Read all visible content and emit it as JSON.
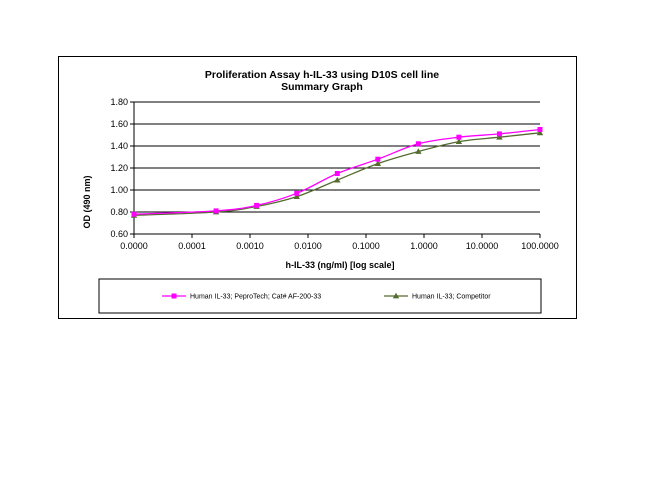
{
  "chart_data": {
    "type": "line",
    "title": "Proliferation Assay h-IL-33 using D10S cell line",
    "subtitle": "Summary Graph",
    "xlabel": "h-IL-33 (ng/ml) [log scale]",
    "ylabel": "OD (490 nm)",
    "x_scale": "log",
    "xlim": [
      1e-05,
      100
    ],
    "ylim": [
      0.6,
      1.8
    ],
    "x_ticks": [
      "0.0000",
      "0.0001",
      "0.0010",
      "0.0100",
      "0.1000",
      "1.0000",
      "10.0000",
      "100.0000"
    ],
    "y_ticks": [
      "0.60",
      "0.80",
      "1.00",
      "1.20",
      "1.40",
      "1.60",
      "1.80"
    ],
    "grid": "horizontal",
    "legend_position": "bottom",
    "x": [
      1e-05,
      0.00026,
      0.0013,
      0.0064,
      0.032,
      0.16,
      0.8,
      4,
      20,
      100
    ],
    "series": [
      {
        "name": "Human IL-33; PeproTech; Cat# AF-200-33",
        "color": "#ff00ff",
        "marker": "square",
        "values": [
          0.78,
          0.81,
          0.86,
          0.97,
          1.15,
          1.28,
          1.42,
          1.48,
          1.51,
          1.55
        ]
      },
      {
        "name": "Human IL-33; Competitor",
        "color": "#556b2f",
        "marker": "triangle",
        "values": [
          0.77,
          0.8,
          0.85,
          0.94,
          1.09,
          1.24,
          1.35,
          1.44,
          1.48,
          1.52
        ]
      }
    ]
  }
}
